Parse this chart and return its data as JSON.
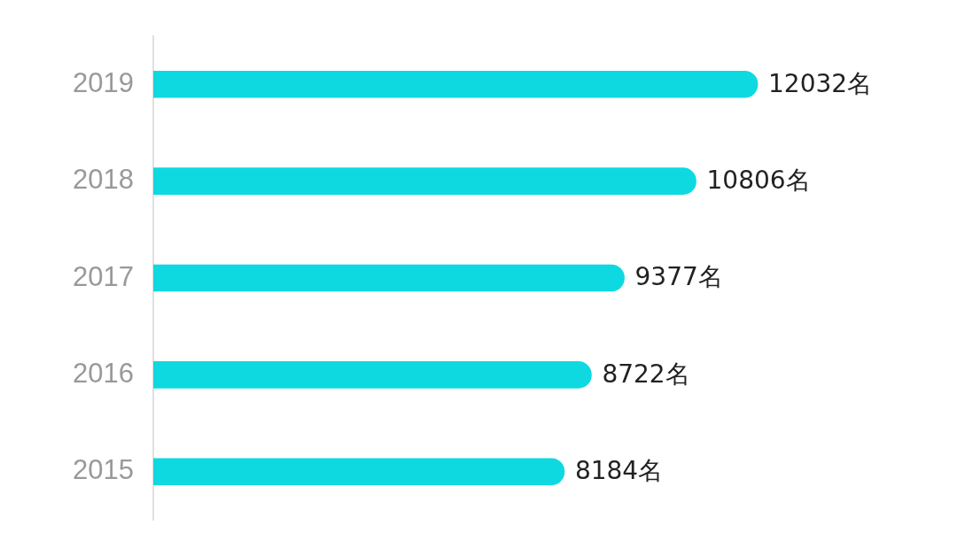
{
  "chart_data": {
    "type": "bar",
    "orientation": "horizontal",
    "categories": [
      "2019",
      "2018",
      "2017",
      "2016",
      "2015"
    ],
    "values": [
      12032,
      10806,
      9377,
      8722,
      8184
    ],
    "value_labels": [
      "12032名",
      "10806名",
      "9377名",
      "8722名",
      "8184名"
    ],
    "color": "#0fd9e0",
    "xlim": [
      0,
      16000
    ],
    "tick_labels": "y"
  }
}
